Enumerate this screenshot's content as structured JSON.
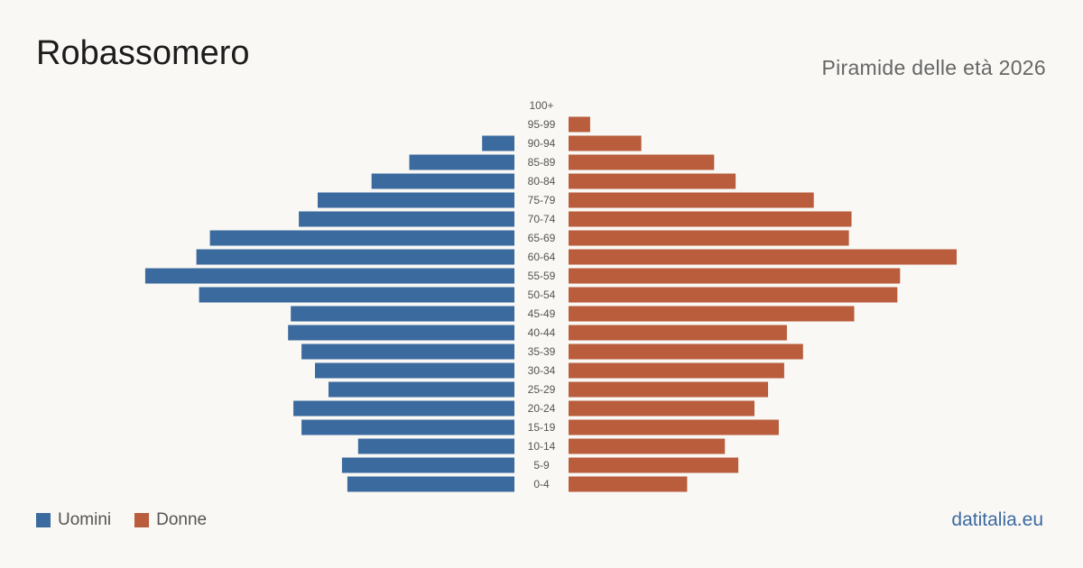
{
  "header": {
    "title": "Robassomero",
    "subtitle": "Piramide delle età 2026"
  },
  "legend": {
    "men_label": "Uomini",
    "women_label": "Donne"
  },
  "brand": "datitalia.eu",
  "colors": {
    "men": "#3b6a9e",
    "women": "#b95d3c",
    "background": "#f9f8f4",
    "age_label": "#555555"
  },
  "chart_data": {
    "type": "bar",
    "orientation": "horizontal-pyramid",
    "categories": [
      "100+",
      "95-99",
      "90-94",
      "85-89",
      "80-84",
      "75-79",
      "70-74",
      "65-69",
      "60-64",
      "55-59",
      "50-54",
      "45-49",
      "40-44",
      "35-39",
      "30-34",
      "25-29",
      "20-24",
      "15-19",
      "10-14",
      "5-9",
      "0-4"
    ],
    "series": [
      {
        "name": "Uomini",
        "values": [
          0,
          0,
          12,
          39,
          53,
          73,
          80,
          113,
          118,
          137,
          117,
          83,
          84,
          79,
          74,
          69,
          82,
          79,
          58,
          64,
          62
        ]
      },
      {
        "name": "Donne",
        "values": [
          0,
          8,
          27,
          54,
          62,
          91,
          105,
          104,
          144,
          123,
          122,
          106,
          81,
          87,
          80,
          74,
          69,
          78,
          58,
          63,
          44
        ]
      }
    ],
    "xlim": [
      0,
      144
    ],
    "grid": false,
    "legend_position": "bottom-left"
  }
}
